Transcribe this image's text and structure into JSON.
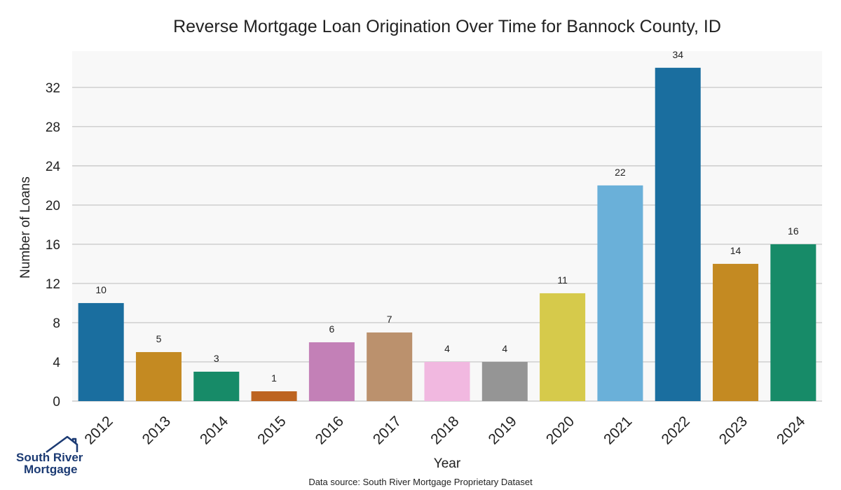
{
  "chart_data": {
    "type": "bar",
    "title": "Reverse Mortgage Loan Origination Over Time for Bannock County, ID",
    "xlabel": "Year",
    "ylabel": "Number of Loans",
    "categories": [
      "2012",
      "2013",
      "2014",
      "2015",
      "2016",
      "2017",
      "2018",
      "2019",
      "2020",
      "2021",
      "2022",
      "2023",
      "2024"
    ],
    "values": [
      10,
      5,
      3,
      1,
      6,
      7,
      4,
      4,
      11,
      22,
      34,
      14,
      16
    ],
    "colors": [
      "#1a6e9f",
      "#c48a22",
      "#178b68",
      "#bd6420",
      "#c380b7",
      "#bb916d",
      "#f1b8e0",
      "#959595",
      "#d6ca4b",
      "#6ab0d9",
      "#1a6e9f",
      "#c48a22",
      "#178b68"
    ],
    "ylim": [
      0,
      35.7
    ],
    "yticks": [
      0,
      4,
      8,
      12,
      16,
      20,
      24,
      28,
      32
    ],
    "grid": true,
    "background": "#f8f8f8",
    "gridline_color": "#cccccc"
  },
  "footer": {
    "source": "Data source: South River Mortgage Proprietary Dataset"
  },
  "logo": {
    "line1": "South River",
    "line2": "Mortgage",
    "color": "#1b3a73"
  }
}
